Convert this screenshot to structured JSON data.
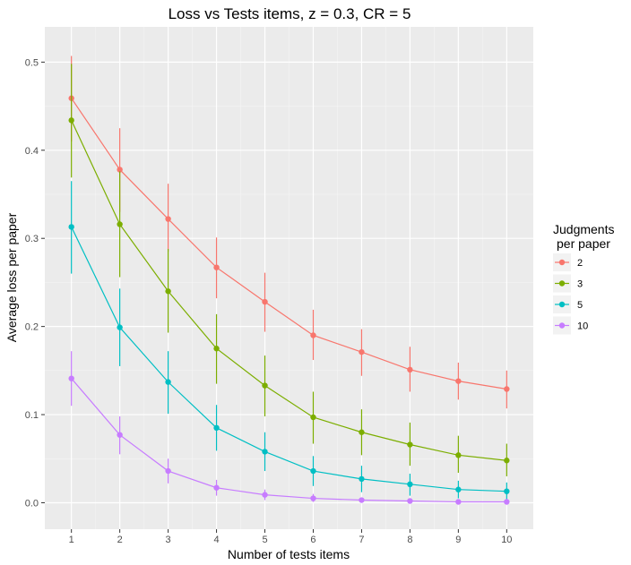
{
  "chart_data": {
    "type": "line",
    "title": "Loss vs Tests items, z = 0.3, CR = 5",
    "xlabel": "Number of tests items",
    "ylabel": "Average loss per paper",
    "x": [
      1,
      2,
      3,
      4,
      5,
      6,
      7,
      8,
      9,
      10
    ],
    "x_ticks": [
      "1",
      "2",
      "3",
      "4",
      "5",
      "6",
      "7",
      "8",
      "9",
      "10"
    ],
    "y_ticks": [
      "0.0",
      "0.1",
      "0.2",
      "0.3",
      "0.4",
      "0.5"
    ],
    "xlim": [
      0.45,
      10.55
    ],
    "ylim": [
      -0.03,
      0.54
    ],
    "grid": true,
    "legend": {
      "title_line1": "Judgments",
      "title_line2": "per paper",
      "placement": "right"
    },
    "series": [
      {
        "name": "2",
        "color": "#F8766D",
        "values": [
          0.459,
          0.378,
          0.322,
          0.267,
          0.228,
          0.19,
          0.171,
          0.151,
          0.138,
          0.129
        ],
        "err_low": [
          0.41,
          0.33,
          0.285,
          0.232,
          0.194,
          0.162,
          0.144,
          0.126,
          0.117,
          0.107
        ],
        "err_high": [
          0.507,
          0.425,
          0.362,
          0.301,
          0.261,
          0.219,
          0.197,
          0.177,
          0.159,
          0.15
        ]
      },
      {
        "name": "3",
        "color": "#7CAE00",
        "values": [
          0.434,
          0.316,
          0.24,
          0.175,
          0.133,
          0.097,
          0.08,
          0.066,
          0.054,
          0.048
        ],
        "err_low": [
          0.369,
          0.256,
          0.193,
          0.135,
          0.098,
          0.067,
          0.054,
          0.042,
          0.034,
          0.03
        ],
        "err_high": [
          0.498,
          0.376,
          0.288,
          0.214,
          0.167,
          0.126,
          0.106,
          0.091,
          0.076,
          0.067
        ]
      },
      {
        "name": "5",
        "color": "#00BFC4",
        "values": [
          0.313,
          0.199,
          0.137,
          0.085,
          0.058,
          0.036,
          0.027,
          0.021,
          0.015,
          0.013
        ],
        "err_low": [
          0.26,
          0.155,
          0.101,
          0.059,
          0.036,
          0.019,
          0.012,
          0.008,
          0.005,
          0.004
        ],
        "err_high": [
          0.365,
          0.243,
          0.172,
          0.111,
          0.08,
          0.053,
          0.042,
          0.033,
          0.025,
          0.023
        ]
      },
      {
        "name": "10",
        "color": "#C77CFF",
        "values": [
          0.141,
          0.077,
          0.036,
          0.017,
          0.009,
          0.005,
          0.003,
          0.002,
          0.001,
          0.001
        ],
        "err_low": [
          0.11,
          0.055,
          0.022,
          0.008,
          0.003,
          0.001,
          0.0,
          0.0,
          0.0,
          0.0
        ],
        "err_high": [
          0.172,
          0.098,
          0.05,
          0.026,
          0.015,
          0.01,
          0.006,
          0.004,
          0.003,
          0.002
        ]
      }
    ]
  }
}
